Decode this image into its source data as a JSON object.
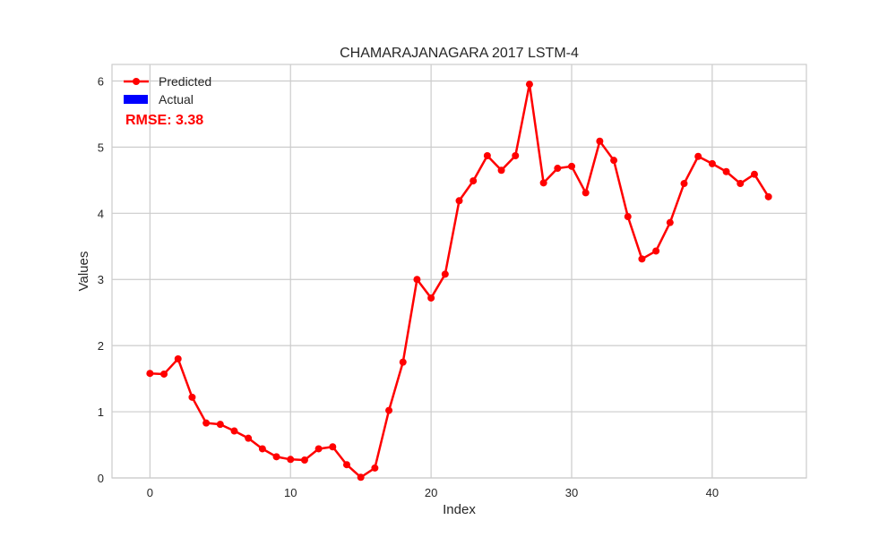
{
  "chart_data": {
    "type": "line",
    "title": "CHAMARAJANAGARA 2017 LSTM-4",
    "xlabel": "Index",
    "ylabel": "Values",
    "xlim": [
      -2.7,
      46.7
    ],
    "ylim": [
      0,
      6.25
    ],
    "xticks": [
      0,
      10,
      20,
      30,
      40
    ],
    "yticks": [
      0,
      1,
      2,
      3,
      4,
      5,
      6
    ],
    "grid": true,
    "legend_position": "top-left",
    "annotation": "RMSE: 3.38",
    "annotation_color": "#ff0000",
    "series": [
      {
        "name": "Predicted",
        "color": "#ff0000",
        "marker": "circle",
        "x": [
          0,
          1,
          2,
          3,
          4,
          5,
          6,
          7,
          8,
          9,
          10,
          11,
          12,
          13,
          14,
          15,
          16,
          17,
          18,
          19,
          20,
          21,
          22,
          23,
          24,
          25,
          26,
          27,
          28,
          29,
          30,
          31,
          32,
          33,
          34,
          35,
          36,
          37,
          38,
          39,
          40,
          41,
          42,
          43,
          44
        ],
        "values": [
          1.58,
          1.57,
          1.8,
          1.22,
          0.83,
          0.81,
          0.71,
          0.6,
          0.44,
          0.32,
          0.28,
          0.27,
          0.44,
          0.47,
          0.2,
          0.01,
          0.15,
          1.02,
          1.75,
          3.0,
          2.72,
          3.08,
          4.19,
          4.49,
          4.87,
          4.65,
          4.87,
          5.95,
          4.46,
          4.68,
          4.71,
          4.31,
          5.09,
          4.8,
          3.95,
          3.31,
          3.43,
          3.86,
          4.45,
          4.86,
          4.75,
          4.63,
          4.45,
          4.59,
          4.25
        ]
      },
      {
        "name": "Actual",
        "color": "#0000ff",
        "x": [],
        "values": []
      }
    ]
  }
}
